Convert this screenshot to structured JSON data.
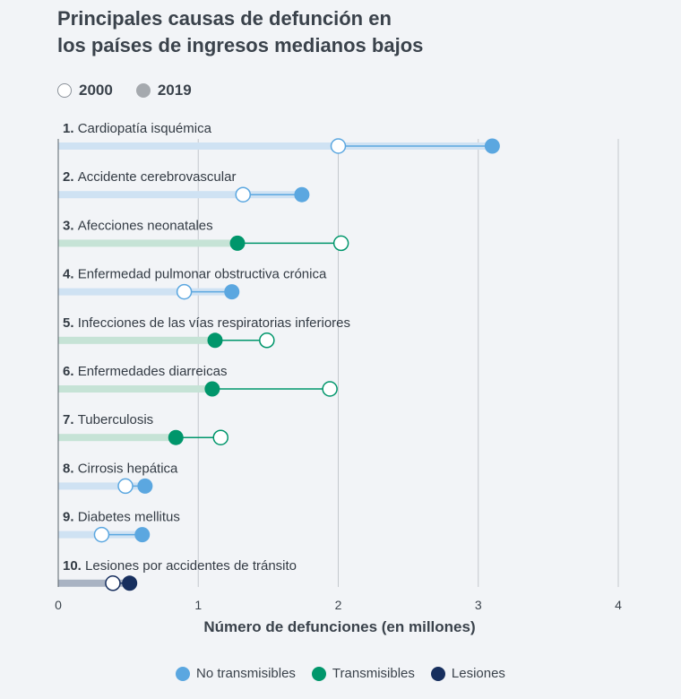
{
  "title": {
    "line1": "Principales causas de defunción en",
    "line2": "los países de ingresos medianos bajos"
  },
  "year_legend": {
    "open": "2000",
    "filled": "2019"
  },
  "category_legend": [
    {
      "key": "nt",
      "label": "No transmisibles",
      "color": "#5ba7e0"
    },
    {
      "key": "t",
      "label": "Transmisibles",
      "color": "#00966b"
    },
    {
      "key": "l",
      "label": "Lesiones",
      "color": "#172f5e"
    }
  ],
  "chart_data": {
    "type": "dumbbell",
    "title": "Principales causas de defunción en los países de ingresos medianos bajos",
    "xlabel": "Número de defunciones (en millones)",
    "xlim": [
      0,
      4
    ],
    "xticks": [
      0,
      1,
      2,
      3,
      4
    ],
    "grid": true,
    "legend_position": "bottom",
    "series_years": [
      "2000",
      "2019"
    ],
    "items": [
      {
        "rank": "1.",
        "label": "Cardiopatía isquémica",
        "category": "nt",
        "v2000": 2.0,
        "v2019": 3.1
      },
      {
        "rank": "2.",
        "label": "Accidente cerebrovascular",
        "category": "nt",
        "v2000": 1.32,
        "v2019": 1.74
      },
      {
        "rank": "3.",
        "label": "Afecciones neonatales",
        "category": "t",
        "v2000": 2.02,
        "v2019": 1.28
      },
      {
        "rank": "4.",
        "label": "Enfermedad pulmonar obstructiva crónica",
        "category": "nt",
        "v2000": 0.9,
        "v2019": 1.24
      },
      {
        "rank": "5.",
        "label": "Infecciones de las vías respiratorias inferiores",
        "category": "t",
        "v2000": 1.49,
        "v2019": 1.12
      },
      {
        "rank": "6.",
        "label": "Enfermedades diarreicas",
        "category": "t",
        "v2000": 1.94,
        "v2019": 1.1
      },
      {
        "rank": "7.",
        "label": "Tuberculosis",
        "category": "t",
        "v2000": 1.16,
        "v2019": 0.84
      },
      {
        "rank": "8.",
        "label": "Cirrosis hepática",
        "category": "nt",
        "v2000": 0.48,
        "v2019": 0.62
      },
      {
        "rank": "9.",
        "label": "Diabetes mellitus",
        "category": "nt",
        "v2000": 0.31,
        "v2019": 0.6
      },
      {
        "rank": "10.",
        "label": "Lesiones por accidentes de tránsito",
        "category": "l",
        "v2000": 0.39,
        "v2019": 0.51
      }
    ]
  }
}
